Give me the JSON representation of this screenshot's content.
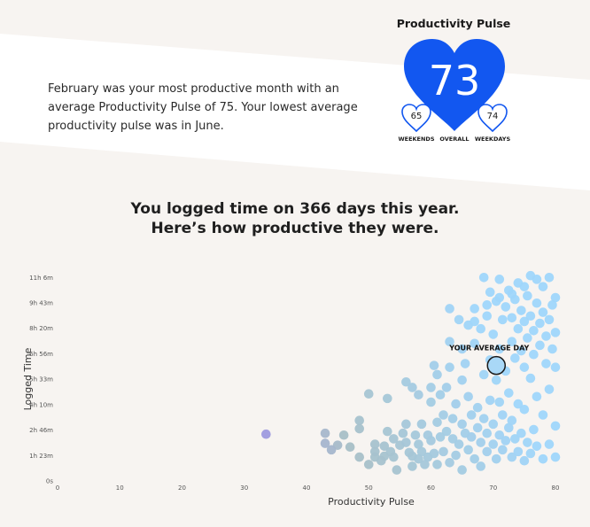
{
  "summary": {
    "text": "February was your most productive month with an average Productivity Pulse of 75. Your lowest average productivity pulse was in June."
  },
  "pulse": {
    "title": "Productivity Pulse",
    "overall": "73",
    "weekends": "65",
    "weekdays": "74",
    "label_weekends": "WEEKENDS",
    "label_overall": "OVERALL",
    "label_weekdays": "WEEKDAYS",
    "colors": {
      "heart": "#1257f0"
    }
  },
  "headline": {
    "line1": "You logged time on 366 days this year.",
    "line2": "Here’s how productive they were."
  },
  "chart_data": {
    "type": "scatter",
    "xlabel": "Productivity Pulse",
    "ylabel": "Logged Time",
    "xlim": [
      0,
      80
    ],
    "ylim": [
      0,
      11.5
    ],
    "x_ticks": [
      0,
      10,
      20,
      30,
      40,
      50,
      60,
      70,
      80
    ],
    "y_ticks": [
      {
        "value": 0,
        "label": "0s"
      },
      {
        "value": 1.383,
        "label": "1h 23m"
      },
      {
        "value": 2.767,
        "label": "2h 46m"
      },
      {
        "value": 4.167,
        "label": "4h 10m"
      },
      {
        "value": 5.55,
        "label": "5h 33m"
      },
      {
        "value": 6.933,
        "label": "6h 56m"
      },
      {
        "value": 8.333,
        "label": "8h 20m"
      },
      {
        "value": 9.717,
        "label": "9h 43m"
      },
      {
        "value": 11.1,
        "label": "11h 6m"
      }
    ],
    "average_day": {
      "label": "YOUR AVERAGE DAY",
      "x": 70.5,
      "y": 6.3
    },
    "color_low": "#9a8ee6",
    "color_mid": "#a8bfc6",
    "color_high": "#9fd6fb",
    "points": [
      [
        33.5,
        2.55
      ],
      [
        43,
        2.6
      ],
      [
        43,
        2.05
      ],
      [
        45,
        1.95
      ],
      [
        47,
        1.85
      ],
      [
        48.5,
        3.3
      ],
      [
        48.5,
        2.85
      ],
      [
        48.5,
        1.3
      ],
      [
        50,
        4.75
      ],
      [
        51,
        1.3
      ],
      [
        51,
        2.0
      ],
      [
        52.5,
        1.35
      ],
      [
        52.5,
        1.9
      ],
      [
        53,
        4.5
      ],
      [
        53.5,
        1.6
      ],
      [
        54,
        1.3
      ],
      [
        54.5,
        0.6
      ],
      [
        55,
        1.95
      ],
      [
        55.5,
        2.6
      ],
      [
        56,
        5.4
      ],
      [
        56,
        2.1
      ],
      [
        56.5,
        1.55
      ],
      [
        57,
        1.35
      ],
      [
        57,
        0.8
      ],
      [
        57.5,
        2.5
      ],
      [
        58,
        2.0
      ],
      [
        58,
        1.2
      ],
      [
        58.5,
        3.1
      ],
      [
        58.5,
        1.6
      ],
      [
        59,
        0.9
      ],
      [
        59.5,
        2.5
      ],
      [
        59.5,
        1.3
      ],
      [
        60,
        4.3
      ],
      [
        60,
        2.2
      ],
      [
        60.5,
        6.3
      ],
      [
        60.5,
        1.5
      ],
      [
        61,
        3.2
      ],
      [
        61,
        0.9
      ],
      [
        61.5,
        4.7
      ],
      [
        61.5,
        2.4
      ],
      [
        62,
        3.6
      ],
      [
        62,
        1.6
      ],
      [
        62.5,
        5.1
      ],
      [
        62.5,
        2.7
      ],
      [
        63,
        1.0
      ],
      [
        63,
        6.2
      ],
      [
        63,
        9.4
      ],
      [
        63.5,
        2.3
      ],
      [
        63.5,
        3.4
      ],
      [
        64,
        4.2
      ],
      [
        64,
        1.4
      ],
      [
        64.5,
        2.0
      ],
      [
        64.5,
        8.8
      ],
      [
        65,
        5.5
      ],
      [
        65,
        3.1
      ],
      [
        65,
        0.6
      ],
      [
        65.5,
        2.6
      ],
      [
        65.5,
        6.4
      ],
      [
        66,
        1.7
      ],
      [
        66,
        4.6
      ],
      [
        66,
        8.5
      ],
      [
        66.5,
        2.4
      ],
      [
        66.5,
        3.6
      ],
      [
        67,
        1.2
      ],
      [
        67,
        9.4
      ],
      [
        67,
        7.5
      ],
      [
        67.5,
        2.9
      ],
      [
        67.5,
        4.0
      ],
      [
        68,
        0.8
      ],
      [
        68,
        2.1
      ],
      [
        68,
        8.3
      ],
      [
        68.5,
        3.4
      ],
      [
        68.5,
        5.8
      ],
      [
        68.5,
        11.1
      ],
      [
        69,
        1.6
      ],
      [
        69,
        2.6
      ],
      [
        69,
        9.0
      ],
      [
        69.5,
        4.4
      ],
      [
        69.5,
        6.6
      ],
      [
        69.5,
        10.3
      ],
      [
        70,
        2.0
      ],
      [
        70,
        3.1
      ],
      [
        70,
        8.0
      ],
      [
        70.5,
        1.2
      ],
      [
        70.5,
        5.5
      ],
      [
        70.5,
        9.8
      ],
      [
        71,
        2.5
      ],
      [
        71,
        4.3
      ],
      [
        71,
        7.2
      ],
      [
        71,
        11.0
      ],
      [
        71.5,
        1.7
      ],
      [
        71.5,
        3.6
      ],
      [
        71.5,
        8.8
      ],
      [
        72,
        2.2
      ],
      [
        72,
        6.0
      ],
      [
        72,
        9.5
      ],
      [
        72.5,
        2.9
      ],
      [
        72.5,
        4.8
      ],
      [
        72.5,
        10.4
      ],
      [
        73,
        1.3
      ],
      [
        73,
        3.3
      ],
      [
        73,
        7.6
      ],
      [
        73,
        8.9
      ],
      [
        73.5,
        2.3
      ],
      [
        73.5,
        6.7
      ],
      [
        73.5,
        9.9
      ],
      [
        74,
        1.6
      ],
      [
        74,
        4.2
      ],
      [
        74,
        8.3
      ],
      [
        74,
        10.8
      ],
      [
        74.5,
        2.6
      ],
      [
        74.5,
        7.1
      ],
      [
        74.5,
        9.3
      ],
      [
        75,
        1.1
      ],
      [
        75,
        3.9
      ],
      [
        75,
        6.2
      ],
      [
        75,
        8.7
      ],
      [
        75.5,
        2.1
      ],
      [
        75.5,
        7.8
      ],
      [
        75.5,
        10.1
      ],
      [
        76,
        1.5
      ],
      [
        76,
        5.6
      ],
      [
        76,
        9.0
      ],
      [
        76,
        11.2
      ],
      [
        76.5,
        2.8
      ],
      [
        76.5,
        6.9
      ],
      [
        76.5,
        8.2
      ],
      [
        77,
        1.9
      ],
      [
        77,
        4.6
      ],
      [
        77,
        9.7
      ],
      [
        77.5,
        7.4
      ],
      [
        77.5,
        8.6
      ],
      [
        78,
        1.2
      ],
      [
        78,
        3.6
      ],
      [
        78,
        9.2
      ],
      [
        78,
        10.6
      ],
      [
        78.5,
        6.4
      ],
      [
        78.5,
        7.9
      ],
      [
        79,
        2.0
      ],
      [
        79,
        5.0
      ],
      [
        79,
        8.8
      ],
      [
        79.5,
        9.6
      ],
      [
        79.5,
        7.2
      ],
      [
        80,
        1.3
      ],
      [
        80,
        3.0
      ],
      [
        80,
        8.1
      ],
      [
        80,
        10.0
      ],
      [
        80,
        6.2
      ],
      [
        79,
        11.1
      ],
      [
        77,
        11.0
      ],
      [
        75,
        10.6
      ],
      [
        73,
        10.2
      ],
      [
        71,
        10.0
      ],
      [
        69,
        9.6
      ],
      [
        67,
        8.7
      ],
      [
        65,
        7.2
      ],
      [
        63,
        7.6
      ],
      [
        61,
        5.8
      ],
      [
        60,
        5.1
      ],
      [
        58,
        4.7
      ],
      [
        57,
        5.1
      ],
      [
        56,
        3.1
      ],
      [
        54,
        2.3
      ],
      [
        53,
        2.7
      ],
      [
        52,
        1.1
      ],
      [
        51,
        1.6
      ],
      [
        50,
        0.9
      ],
      [
        46,
        2.5
      ],
      [
        44,
        1.7
      ]
    ]
  }
}
